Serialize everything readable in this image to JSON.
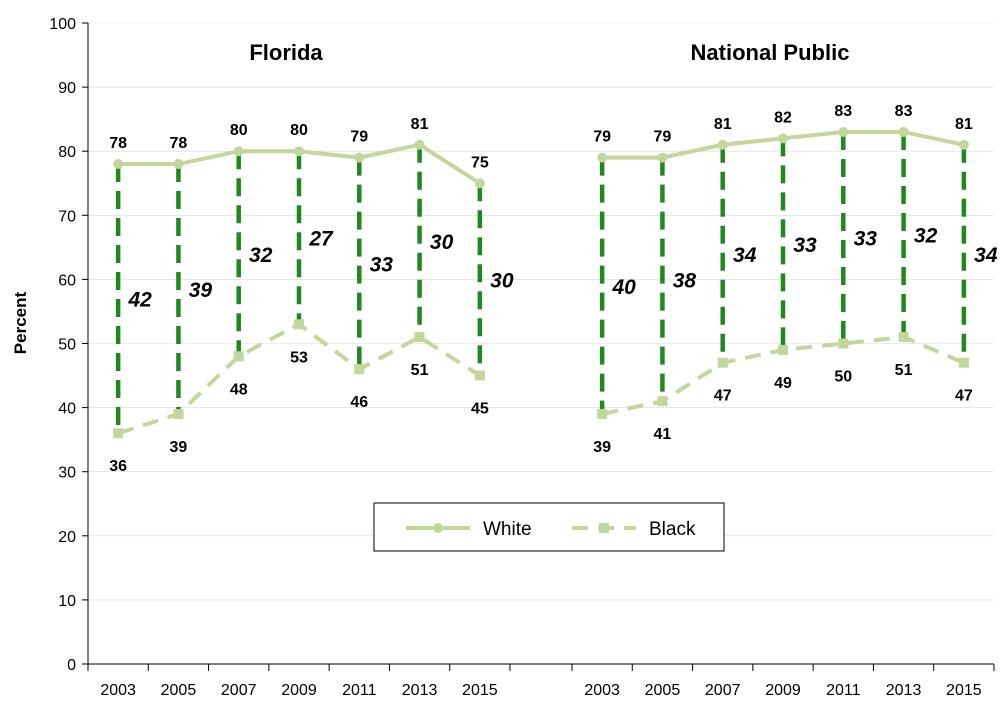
{
  "colors": {
    "series": "#c3d69b",
    "gap": "#1e8a1e",
    "axis": "#000000",
    "grid": "#d9d9d9"
  },
  "chart_data": {
    "type": "line",
    "ylabel": "Percent",
    "ylim": [
      0,
      100
    ],
    "yticks": [
      0,
      10,
      20,
      30,
      40,
      50,
      60,
      70,
      80,
      90,
      100
    ],
    "legend": {
      "position": "center",
      "entries": [
        "White",
        "Black"
      ]
    },
    "panels": [
      {
        "title": "Florida",
        "x": [
          "2003",
          "2005",
          "2007",
          "2009",
          "2011",
          "2013",
          "2015"
        ],
        "series": [
          {
            "name": "White",
            "style": "solid-circle",
            "values": [
              78,
              78,
              80,
              80,
              79,
              81,
              75
            ]
          },
          {
            "name": "Black",
            "style": "dashed-square",
            "values": [
              36,
              39,
              48,
              53,
              46,
              51,
              45
            ]
          }
        ],
        "gaps": [
          42,
          39,
          32,
          27,
          33,
          30,
          30
        ]
      },
      {
        "title": "National Public",
        "x": [
          "2003",
          "2005",
          "2007",
          "2009",
          "2011",
          "2013",
          "2015"
        ],
        "series": [
          {
            "name": "White",
            "style": "solid-circle",
            "values": [
              79,
              79,
              81,
              82,
              83,
              83,
              81
            ]
          },
          {
            "name": "Black",
            "style": "dashed-square",
            "values": [
              39,
              41,
              47,
              49,
              50,
              51,
              47
            ]
          }
        ],
        "gaps": [
          40,
          38,
          34,
          33,
          33,
          32,
          34
        ]
      }
    ]
  }
}
